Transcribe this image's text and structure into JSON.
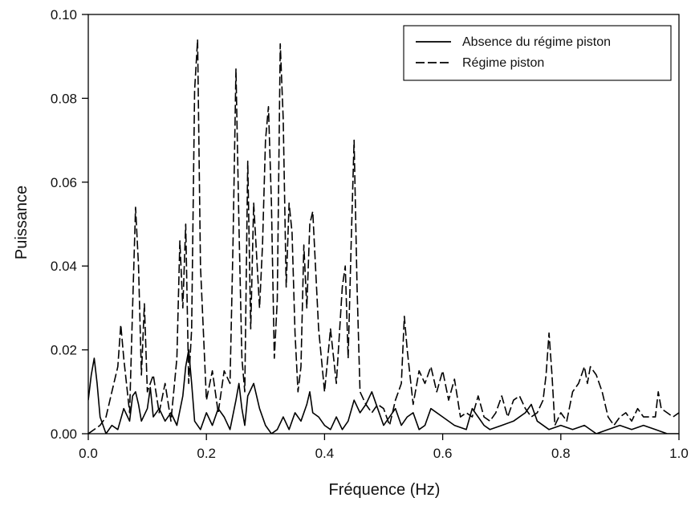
{
  "chart_data": {
    "type": "line",
    "xlabel": "Fréquence (Hz)",
    "ylabel": "Puissance",
    "xlim": [
      0.0,
      1.0
    ],
    "ylim": [
      0.0,
      0.1
    ],
    "x_ticks": [
      "0.0",
      "0.2",
      "0.4",
      "0.6",
      "0.8",
      "1.0"
    ],
    "y_ticks": [
      "0.00",
      "0.02",
      "0.04",
      "0.06",
      "0.08",
      "0.10"
    ],
    "x_tick_values": [
      0.0,
      0.2,
      0.4,
      0.6,
      0.8,
      1.0
    ],
    "y_tick_values": [
      0.0,
      0.02,
      0.04,
      0.06,
      0.08,
      0.1
    ],
    "grid": false,
    "legend_position": "top-right",
    "series": [
      {
        "name": "Absence du régime piston",
        "style": "solid",
        "color": "#000000",
        "x": [
          0.0,
          0.005,
          0.01,
          0.015,
          0.02,
          0.03,
          0.04,
          0.05,
          0.06,
          0.07,
          0.075,
          0.08,
          0.085,
          0.09,
          0.1,
          0.105,
          0.11,
          0.12,
          0.13,
          0.14,
          0.15,
          0.16,
          0.165,
          0.17,
          0.175,
          0.18,
          0.19,
          0.2,
          0.21,
          0.22,
          0.23,
          0.24,
          0.25,
          0.255,
          0.26,
          0.265,
          0.27,
          0.28,
          0.29,
          0.3,
          0.31,
          0.32,
          0.33,
          0.34,
          0.35,
          0.36,
          0.37,
          0.375,
          0.38,
          0.39,
          0.4,
          0.41,
          0.42,
          0.43,
          0.44,
          0.45,
          0.46,
          0.47,
          0.48,
          0.49,
          0.5,
          0.51,
          0.52,
          0.53,
          0.54,
          0.55,
          0.56,
          0.57,
          0.58,
          0.6,
          0.62,
          0.64,
          0.65,
          0.66,
          0.67,
          0.68,
          0.7,
          0.72,
          0.74,
          0.75,
          0.76,
          0.78,
          0.8,
          0.82,
          0.84,
          0.86,
          0.88,
          0.9,
          0.92,
          0.94,
          0.96,
          0.98,
          1.0
        ],
        "values": [
          0.008,
          0.014,
          0.018,
          0.012,
          0.004,
          0.0,
          0.002,
          0.001,
          0.006,
          0.003,
          0.009,
          0.01,
          0.007,
          0.003,
          0.006,
          0.011,
          0.004,
          0.006,
          0.003,
          0.005,
          0.002,
          0.009,
          0.016,
          0.02,
          0.012,
          0.003,
          0.001,
          0.005,
          0.002,
          0.006,
          0.004,
          0.001,
          0.008,
          0.012,
          0.006,
          0.002,
          0.009,
          0.012,
          0.006,
          0.002,
          0.0,
          0.001,
          0.004,
          0.001,
          0.005,
          0.003,
          0.007,
          0.01,
          0.005,
          0.004,
          0.002,
          0.001,
          0.004,
          0.001,
          0.003,
          0.008,
          0.005,
          0.007,
          0.01,
          0.006,
          0.002,
          0.004,
          0.006,
          0.002,
          0.004,
          0.005,
          0.001,
          0.002,
          0.006,
          0.004,
          0.002,
          0.001,
          0.006,
          0.004,
          0.002,
          0.001,
          0.002,
          0.003,
          0.005,
          0.007,
          0.003,
          0.001,
          0.002,
          0.001,
          0.002,
          0.0,
          0.001,
          0.002,
          0.001,
          0.002,
          0.001,
          0.0,
          0.0
        ]
      },
      {
        "name": "Régime piston",
        "style": "dashed",
        "color": "#000000",
        "x": [
          0.0,
          0.02,
          0.03,
          0.04,
          0.05,
          0.055,
          0.06,
          0.07,
          0.075,
          0.08,
          0.085,
          0.09,
          0.095,
          0.1,
          0.11,
          0.12,
          0.13,
          0.14,
          0.15,
          0.155,
          0.16,
          0.165,
          0.17,
          0.175,
          0.18,
          0.185,
          0.19,
          0.2,
          0.21,
          0.22,
          0.23,
          0.24,
          0.245,
          0.25,
          0.255,
          0.26,
          0.265,
          0.27,
          0.275,
          0.28,
          0.29,
          0.295,
          0.3,
          0.305,
          0.31,
          0.315,
          0.32,
          0.325,
          0.33,
          0.335,
          0.34,
          0.345,
          0.35,
          0.355,
          0.36,
          0.365,
          0.37,
          0.375,
          0.38,
          0.39,
          0.4,
          0.41,
          0.42,
          0.43,
          0.435,
          0.44,
          0.445,
          0.45,
          0.455,
          0.46,
          0.47,
          0.48,
          0.49,
          0.5,
          0.51,
          0.52,
          0.53,
          0.535,
          0.54,
          0.55,
          0.56,
          0.57,
          0.58,
          0.59,
          0.6,
          0.61,
          0.62,
          0.63,
          0.64,
          0.65,
          0.66,
          0.67,
          0.68,
          0.69,
          0.7,
          0.71,
          0.72,
          0.73,
          0.74,
          0.75,
          0.76,
          0.77,
          0.775,
          0.78,
          0.785,
          0.79,
          0.8,
          0.81,
          0.82,
          0.83,
          0.84,
          0.845,
          0.85,
          0.86,
          0.87,
          0.88,
          0.89,
          0.9,
          0.91,
          0.92,
          0.93,
          0.94,
          0.95,
          0.96,
          0.965,
          0.97,
          0.98,
          0.99,
          1.0
        ],
        "values": [
          0.0,
          0.002,
          0.004,
          0.01,
          0.016,
          0.026,
          0.018,
          0.005,
          0.03,
          0.054,
          0.04,
          0.014,
          0.031,
          0.01,
          0.014,
          0.005,
          0.012,
          0.003,
          0.018,
          0.046,
          0.03,
          0.05,
          0.012,
          0.025,
          0.082,
          0.094,
          0.04,
          0.008,
          0.015,
          0.005,
          0.015,
          0.012,
          0.045,
          0.087,
          0.05,
          0.018,
          0.01,
          0.065,
          0.025,
          0.055,
          0.03,
          0.045,
          0.07,
          0.078,
          0.055,
          0.018,
          0.032,
          0.093,
          0.075,
          0.035,
          0.055,
          0.048,
          0.024,
          0.01,
          0.016,
          0.045,
          0.03,
          0.05,
          0.053,
          0.025,
          0.01,
          0.025,
          0.012,
          0.035,
          0.04,
          0.018,
          0.045,
          0.07,
          0.035,
          0.01,
          0.007,
          0.005,
          0.007,
          0.006,
          0.002,
          0.008,
          0.012,
          0.028,
          0.02,
          0.007,
          0.015,
          0.012,
          0.016,
          0.01,
          0.015,
          0.008,
          0.013,
          0.004,
          0.005,
          0.004,
          0.009,
          0.004,
          0.003,
          0.005,
          0.009,
          0.004,
          0.008,
          0.009,
          0.006,
          0.004,
          0.005,
          0.008,
          0.014,
          0.024,
          0.014,
          0.002,
          0.005,
          0.003,
          0.01,
          0.012,
          0.016,
          0.012,
          0.016,
          0.014,
          0.01,
          0.004,
          0.002,
          0.004,
          0.005,
          0.003,
          0.006,
          0.004,
          0.004,
          0.004,
          0.01,
          0.006,
          0.005,
          0.004,
          0.005
        ]
      }
    ]
  }
}
